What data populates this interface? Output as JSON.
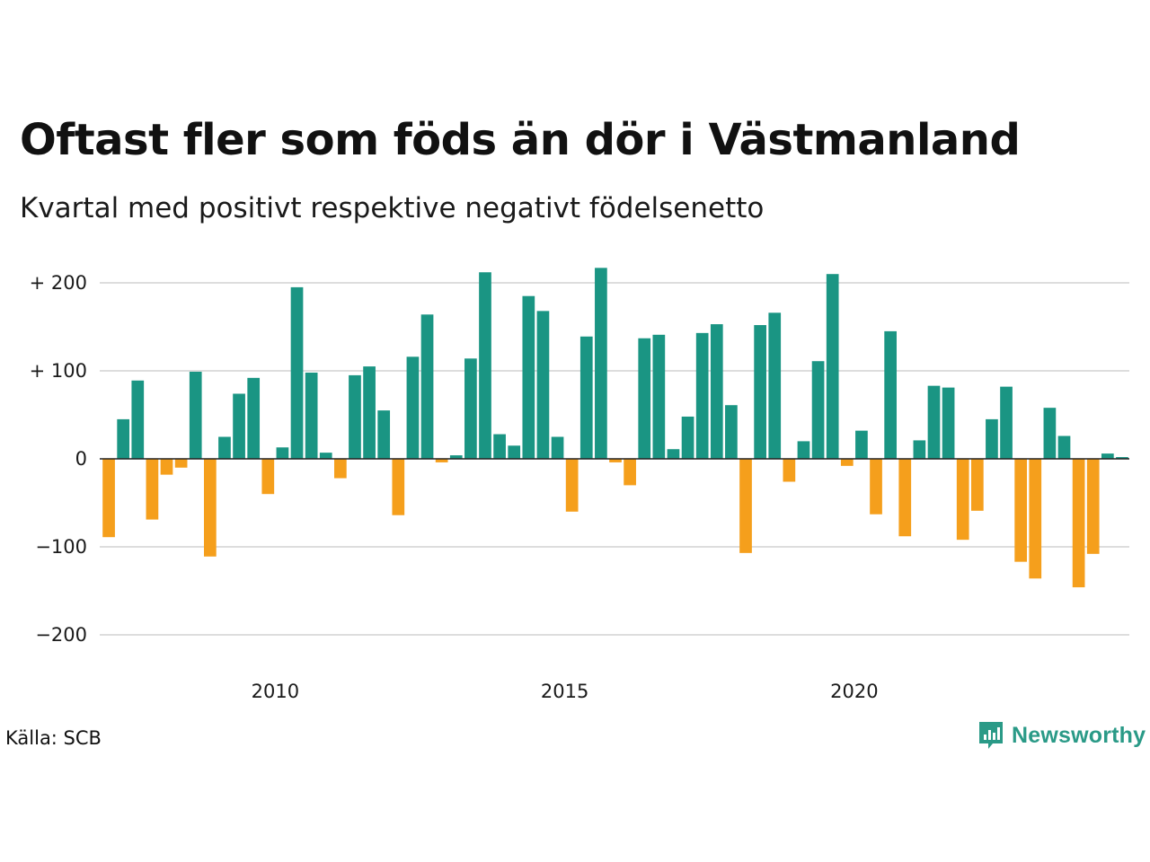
{
  "title": "Oftast fler som föds än dör i Västmanland",
  "subtitle": "Kvartal med positivt respektive negativt födelsenetto",
  "source": "Källa: SCB",
  "brand": {
    "name": "Newsworthy",
    "icon": "newsworthy-logo-icon",
    "color": "#2a9a87"
  },
  "colors": {
    "positive": "#1a9583",
    "negative": "#f59f1c",
    "grid": "#dddddd",
    "zero": "#222222"
  },
  "chart_data": {
    "type": "bar",
    "ylim": [
      -230,
      220
    ],
    "yticks": [
      {
        "value": 200,
        "label": "+ 200"
      },
      {
        "value": 100,
        "label": "+ 100"
      },
      {
        "value": 0,
        "label": "0"
      },
      {
        "value": -100,
        "label": "−100"
      },
      {
        "value": -200,
        "label": "−200"
      }
    ],
    "xticks": [
      {
        "index": 12,
        "label": "2010"
      },
      {
        "index": 32,
        "label": "2015"
      },
      {
        "index": 52,
        "label": "2020"
      }
    ],
    "grid": true,
    "legend": "none",
    "values": [
      -89,
      45,
      89,
      -69,
      -18,
      -10,
      99,
      -111,
      25,
      74,
      92,
      -40,
      13,
      195,
      98,
      7,
      -22,
      95,
      105,
      55,
      -64,
      116,
      164,
      -4,
      4,
      114,
      212,
      28,
      15,
      185,
      168,
      25,
      -60,
      139,
      217,
      -4,
      -30,
      137,
      141,
      11,
      48,
      143,
      153,
      61,
      -107,
      152,
      166,
      -26,
      20,
      111,
      210,
      -8,
      32,
      -63,
      145,
      -88,
      21,
      83,
      81,
      -92,
      -59,
      45,
      82,
      -117,
      -136,
      58,
      26,
      -146,
      -108,
      6,
      2
    ]
  }
}
